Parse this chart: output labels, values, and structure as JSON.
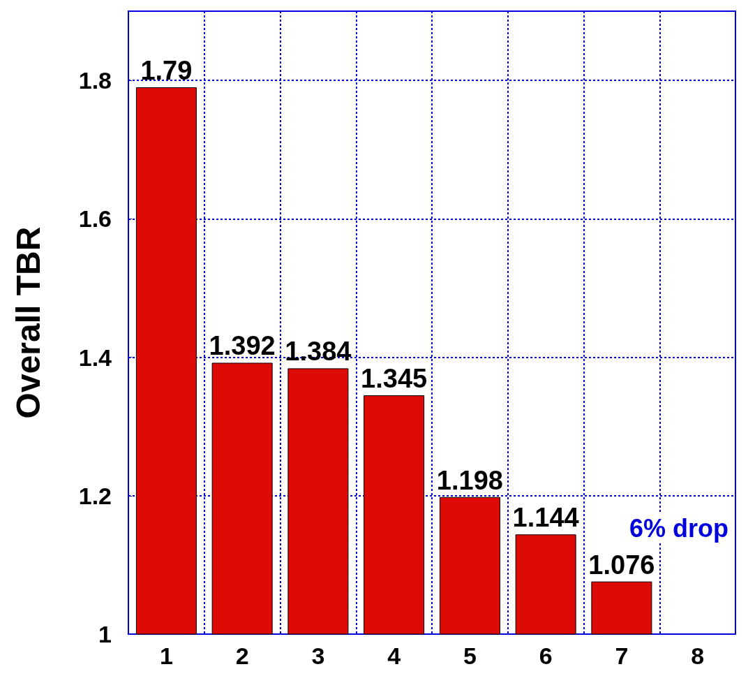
{
  "chart_data": {
    "type": "bar",
    "ylabel": "Overall TBR",
    "categories": [
      "1",
      "2",
      "3",
      "4",
      "5",
      "6",
      "7",
      "8"
    ],
    "values": [
      1.79,
      1.392,
      1.384,
      1.345,
      1.198,
      1.144,
      1.076,
      null
    ],
    "color": "#dd0a06",
    "ylim": [
      1,
      1.9
    ],
    "yticks": [
      1,
      1.2,
      1.4,
      1.6,
      1.8
    ],
    "grid": true,
    "data_labels": true,
    "annotations": [
      "6% drop"
    ]
  }
}
